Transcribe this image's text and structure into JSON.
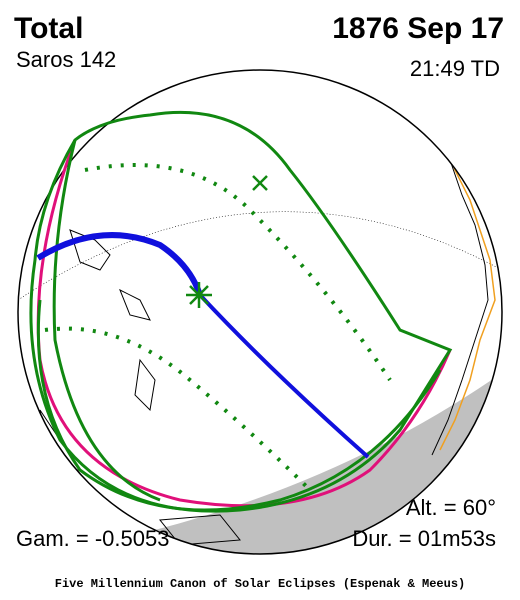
{
  "header": {
    "eclipse_type": "Total",
    "date": "1876 Sep 17",
    "saros": "Saros 142",
    "time": "21:49 TD"
  },
  "footer": {
    "altitude": "Alt. = 60°",
    "gamma": "Gam. = -0.5053",
    "duration": "Dur. = 01m53s",
    "credit": "Five Millennium Canon of Solar Eclipses (Espenak & Meeus)"
  }
}
